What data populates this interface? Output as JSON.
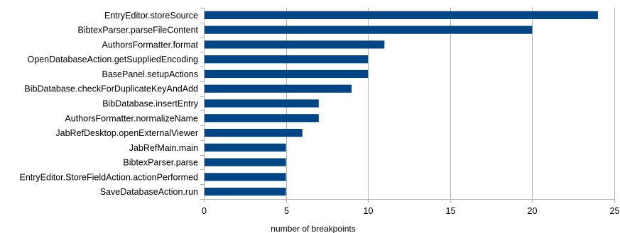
{
  "chart_data": {
    "type": "bar",
    "orientation": "horizontal",
    "categories": [
      "EntryEditor.storeSource",
      "BibtexParser.parseFileContent",
      "AuthorsFormatter.format",
      "OpenDatabaseAction.getSuppliedEncoding",
      "BasePanel.setupActions",
      "BibDatabase.checkForDuplicateKeyAndAdd",
      "BibDatabase.insertEntry",
      "AuthorsFormatter.normalizeName",
      "JabRefDesktop.openExternalViewer",
      "JabRefMain.main",
      "BibtexParser.parse",
      "EntryEditor.StoreFieldAction.actionPerformed",
      "SaveDatabaseAction.run"
    ],
    "values": [
      24,
      20,
      11,
      10,
      10,
      9,
      7,
      7,
      6,
      5,
      5,
      5,
      5
    ],
    "xlabel": "number of breakpoints",
    "xlim": [
      0,
      25
    ],
    "xticks": [
      "0",
      "5",
      "10",
      "15",
      "20",
      "25"
    ],
    "grid": true,
    "legend": "none",
    "bar_color": "#004586"
  }
}
